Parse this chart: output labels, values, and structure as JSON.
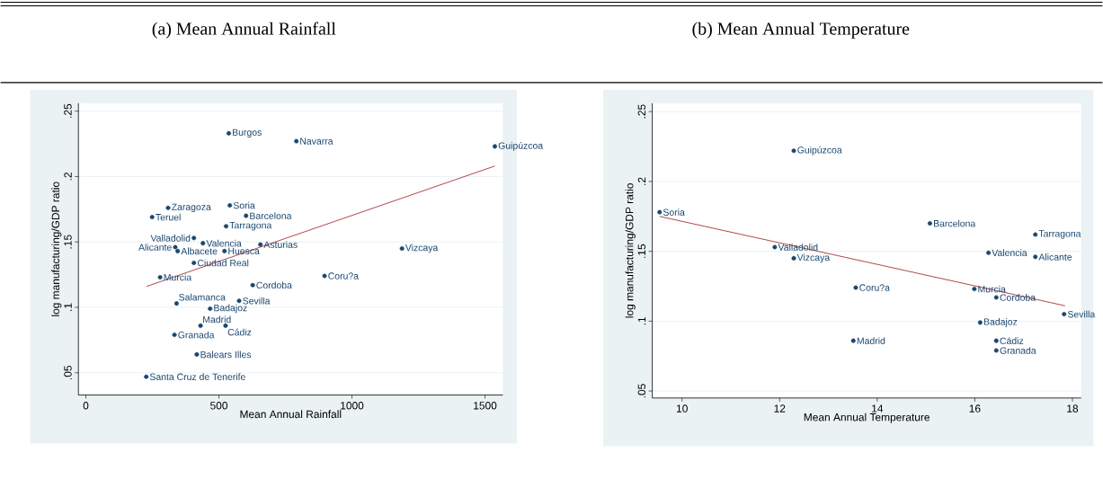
{
  "chart_data": [
    {
      "type": "scatter",
      "title": "(a) Mean Annual Rainfall",
      "xlabel": "Mean Annual Rainfall",
      "ylabel": "log manufacturing/GDP ratio",
      "xlim": [
        -28,
        1567
      ],
      "ylim": [
        0.033,
        0.256
      ],
      "xticks": [
        0,
        500,
        1000,
        1500
      ],
      "yticks": [
        {
          "value": 0.05,
          "label": ".05"
        },
        {
          "value": 0.1,
          "label": ".1"
        },
        {
          "value": 0.15,
          "label": ".15"
        },
        {
          "value": 0.2,
          "label": ".2"
        },
        {
          "value": 0.25,
          "label": ".25"
        }
      ],
      "grid": "y",
      "marker": "circle",
      "series": [
        {
          "color": "#1a476f",
          "x": [
            537,
            791,
            1537,
            309,
            249,
            541,
            602,
            527,
            406,
            440,
            336,
            345,
            521,
            656,
            406,
            279,
            627,
            897,
            1188,
            576,
            341,
            467,
            431,
            525,
            333,
            417,
            227
          ],
          "values": [
            0.233,
            0.227,
            0.223,
            0.176,
            0.169,
            0.178,
            0.17,
            0.162,
            0.153,
            0.149,
            0.146,
            0.143,
            0.143,
            0.148,
            0.134,
            0.123,
            0.117,
            0.124,
            0.145,
            0.105,
            0.103,
            0.099,
            0.086,
            0.086,
            0.079,
            0.064,
            0.047
          ]
        },
        {
          "type": "line",
          "color": "#a83236",
          "marker": "none",
          "x": [
            228,
            1537
          ],
          "values": [
            0.116,
            0.208
          ]
        }
      ],
      "annotations": [
        {
          "text": "Burgos",
          "x": 537,
          "y": 0.233
        },
        {
          "text": "Navarra",
          "x": 791,
          "y": 0.227
        },
        {
          "text": "Guipúzcoa",
          "x": 1537,
          "y": 0.223
        },
        {
          "text": "Zaragoza",
          "x": 309,
          "y": 0.176
        },
        {
          "text": "Teruel",
          "x": 249,
          "y": 0.169
        },
        {
          "text": "Soria",
          "x": 541,
          "y": 0.178
        },
        {
          "text": "Barcelona",
          "x": 602,
          "y": 0.17
        },
        {
          "text": "Tarragona",
          "x": 527,
          "y": 0.162
        },
        {
          "text": "Valladolid",
          "x": 406,
          "y": 0.153
        },
        {
          "text": "Valencia",
          "x": 440,
          "y": 0.149
        },
        {
          "text": "Alicante",
          "x": 336,
          "y": 0.146
        },
        {
          "text": "Albacete",
          "x": 345,
          "y": 0.143
        },
        {
          "text": "Huesca",
          "x": 521,
          "y": 0.143
        },
        {
          "text": "Asturias",
          "x": 656,
          "y": 0.148
        },
        {
          "text": "Ciudad Real",
          "x": 406,
          "y": 0.134
        },
        {
          "text": "Murcia",
          "x": 279,
          "y": 0.123
        },
        {
          "text": "Cordoba",
          "x": 627,
          "y": 0.117
        },
        {
          "text": "Coru?a",
          "x": 897,
          "y": 0.124
        },
        {
          "text": "Vizcaya",
          "x": 1188,
          "y": 0.145
        },
        {
          "text": "Sevilla",
          "x": 576,
          "y": 0.105
        },
        {
          "text": "Salamanca",
          "x": 341,
          "y": 0.103
        },
        {
          "text": "Badajoz",
          "x": 467,
          "y": 0.099
        },
        {
          "text": "Madrid",
          "x": 431,
          "y": 0.086
        },
        {
          "text": "Cádiz",
          "x": 525,
          "y": 0.086
        },
        {
          "text": "Granada",
          "x": 333,
          "y": 0.079
        },
        {
          "text": "Balears Illes",
          "x": 417,
          "y": 0.064
        },
        {
          "text": "Santa Cruz de Tenerife",
          "x": 227,
          "y": 0.047
        }
      ]
    },
    {
      "type": "scatter",
      "title": "(b) Mean Annual Temperature",
      "xlabel": "Mean Annual Temperature",
      "ylabel": "log manufacturing/GDP ratio",
      "xlim": [
        9.39,
        18.18
      ],
      "ylim": [
        0.045,
        0.256
      ],
      "xticks": [
        10,
        12,
        14,
        16,
        18
      ],
      "yticks": [
        {
          "value": 0.05,
          "label": ".05"
        },
        {
          "value": 0.1,
          "label": ".1"
        },
        {
          "value": 0.15,
          "label": ".15"
        },
        {
          "value": 0.2,
          "label": ".2"
        },
        {
          "value": 0.25,
          "label": ".25"
        }
      ],
      "grid": "y",
      "marker": "circle",
      "series": [
        {
          "color": "#1a476f",
          "x": [
            12.29,
            9.54,
            11.9,
            12.29,
            13.56,
            13.51,
            15.08,
            17.24,
            16.28,
            17.24,
            15.99,
            16.44,
            17.83,
            16.11,
            16.44,
            16.44
          ],
          "values": [
            0.222,
            0.178,
            0.153,
            0.145,
            0.124,
            0.086,
            0.17,
            0.162,
            0.149,
            0.146,
            0.123,
            0.117,
            0.105,
            0.099,
            0.086,
            0.079
          ]
        },
        {
          "type": "line",
          "color": "#a83236",
          "marker": "none",
          "x": [
            9.54,
            17.85
          ],
          "values": [
            0.175,
            0.111
          ]
        }
      ],
      "annotations": [
        {
          "text": "Guipúzcoa",
          "x": 12.29,
          "y": 0.222
        },
        {
          "text": "Soria",
          "x": 9.54,
          "y": 0.178
        },
        {
          "text": "Valladolid",
          "x": 11.9,
          "y": 0.153
        },
        {
          "text": "Vizcaya",
          "x": 12.29,
          "y": 0.145
        },
        {
          "text": "Coru?a",
          "x": 13.56,
          "y": 0.124
        },
        {
          "text": "Madrid",
          "x": 13.51,
          "y": 0.086
        },
        {
          "text": "Barcelona",
          "x": 15.08,
          "y": 0.17
        },
        {
          "text": "Tarragona",
          "x": 17.24,
          "y": 0.162
        },
        {
          "text": "Valencia",
          "x": 16.28,
          "y": 0.149
        },
        {
          "text": "Alicante",
          "x": 17.24,
          "y": 0.146
        },
        {
          "text": "Murcia",
          "x": 15.99,
          "y": 0.123
        },
        {
          "text": "Cordoba",
          "x": 16.44,
          "y": 0.117
        },
        {
          "text": "Sevilla",
          "x": 17.83,
          "y": 0.105
        },
        {
          "text": "Badajoz",
          "x": 16.11,
          "y": 0.099
        },
        {
          "text": "Cádiz",
          "x": 16.44,
          "y": 0.086
        },
        {
          "text": "Granada",
          "x": 16.44,
          "y": 0.079
        }
      ]
    }
  ]
}
